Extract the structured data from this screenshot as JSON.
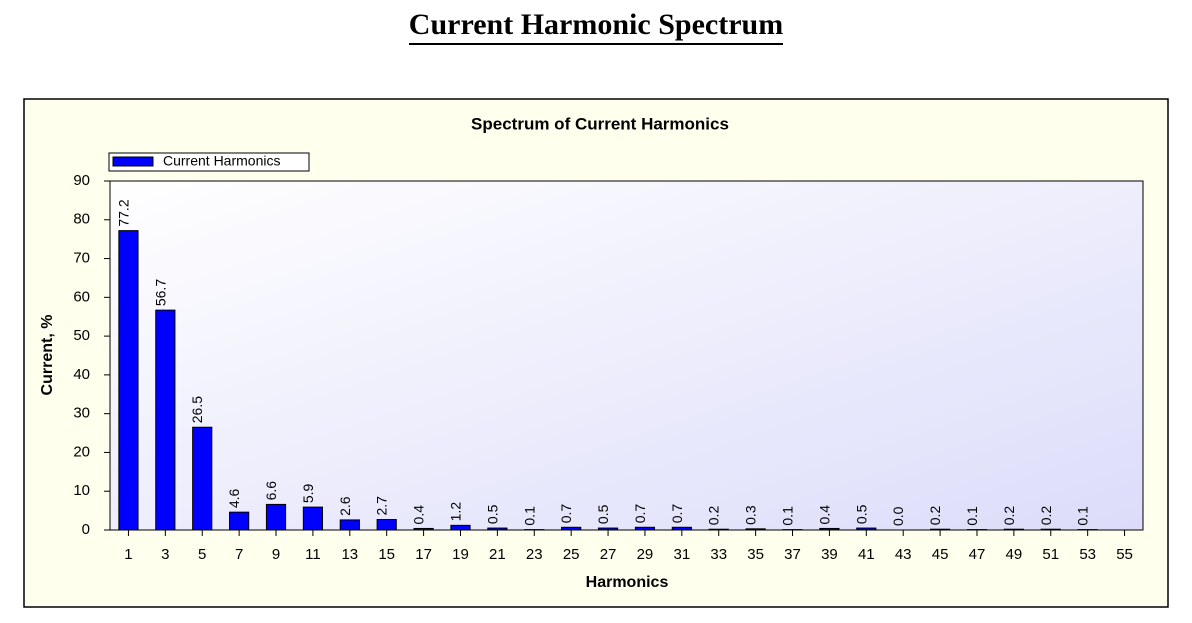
{
  "header": {
    "title": "Current Harmonic Spectrum"
  },
  "chart_data": {
    "type": "bar",
    "title": "Spectrum of Current Harmonics",
    "x_label": "Harmonics",
    "y_label": "Current, %",
    "categories": [
      "1",
      "3",
      "5",
      "7",
      "9",
      "11",
      "13",
      "15",
      "17",
      "19",
      "21",
      "23",
      "25",
      "27",
      "29",
      "31",
      "33",
      "35",
      "37",
      "39",
      "41",
      "43",
      "45",
      "47",
      "49",
      "51",
      "53",
      "55"
    ],
    "series": [
      {
        "name": "Current Harmonics",
        "color": "#0000ff",
        "values": [
          77.2,
          56.7,
          26.5,
          4.6,
          6.6,
          5.9,
          2.6,
          2.7,
          0.4,
          1.2,
          0.5,
          0.1,
          0.7,
          0.5,
          0.7,
          0.7,
          0.2,
          0.3,
          0.1,
          0.4,
          0.5,
          0.0,
          0.2,
          0.1,
          0.2,
          0.2,
          0.1,
          null
        ],
        "value_labels": [
          "77.2",
          "56.7",
          "26.5",
          "4.6",
          "6.6",
          "5.9",
          "2.6",
          "2.7",
          "0.4",
          "1.2",
          "0.5",
          "0.1",
          "0.7",
          "0.5",
          "0.7",
          "0.7",
          "0.2",
          "0.3",
          "0.1",
          "0.4",
          "0.5",
          "0.0",
          "0.2",
          "0.1",
          "0.2",
          "0.2",
          "0.1",
          null
        ]
      }
    ],
    "ylim": [
      0,
      90
    ],
    "yticks": [
      0,
      10,
      20,
      30,
      40,
      50,
      60,
      70,
      80,
      90
    ],
    "legend": "top-left"
  }
}
